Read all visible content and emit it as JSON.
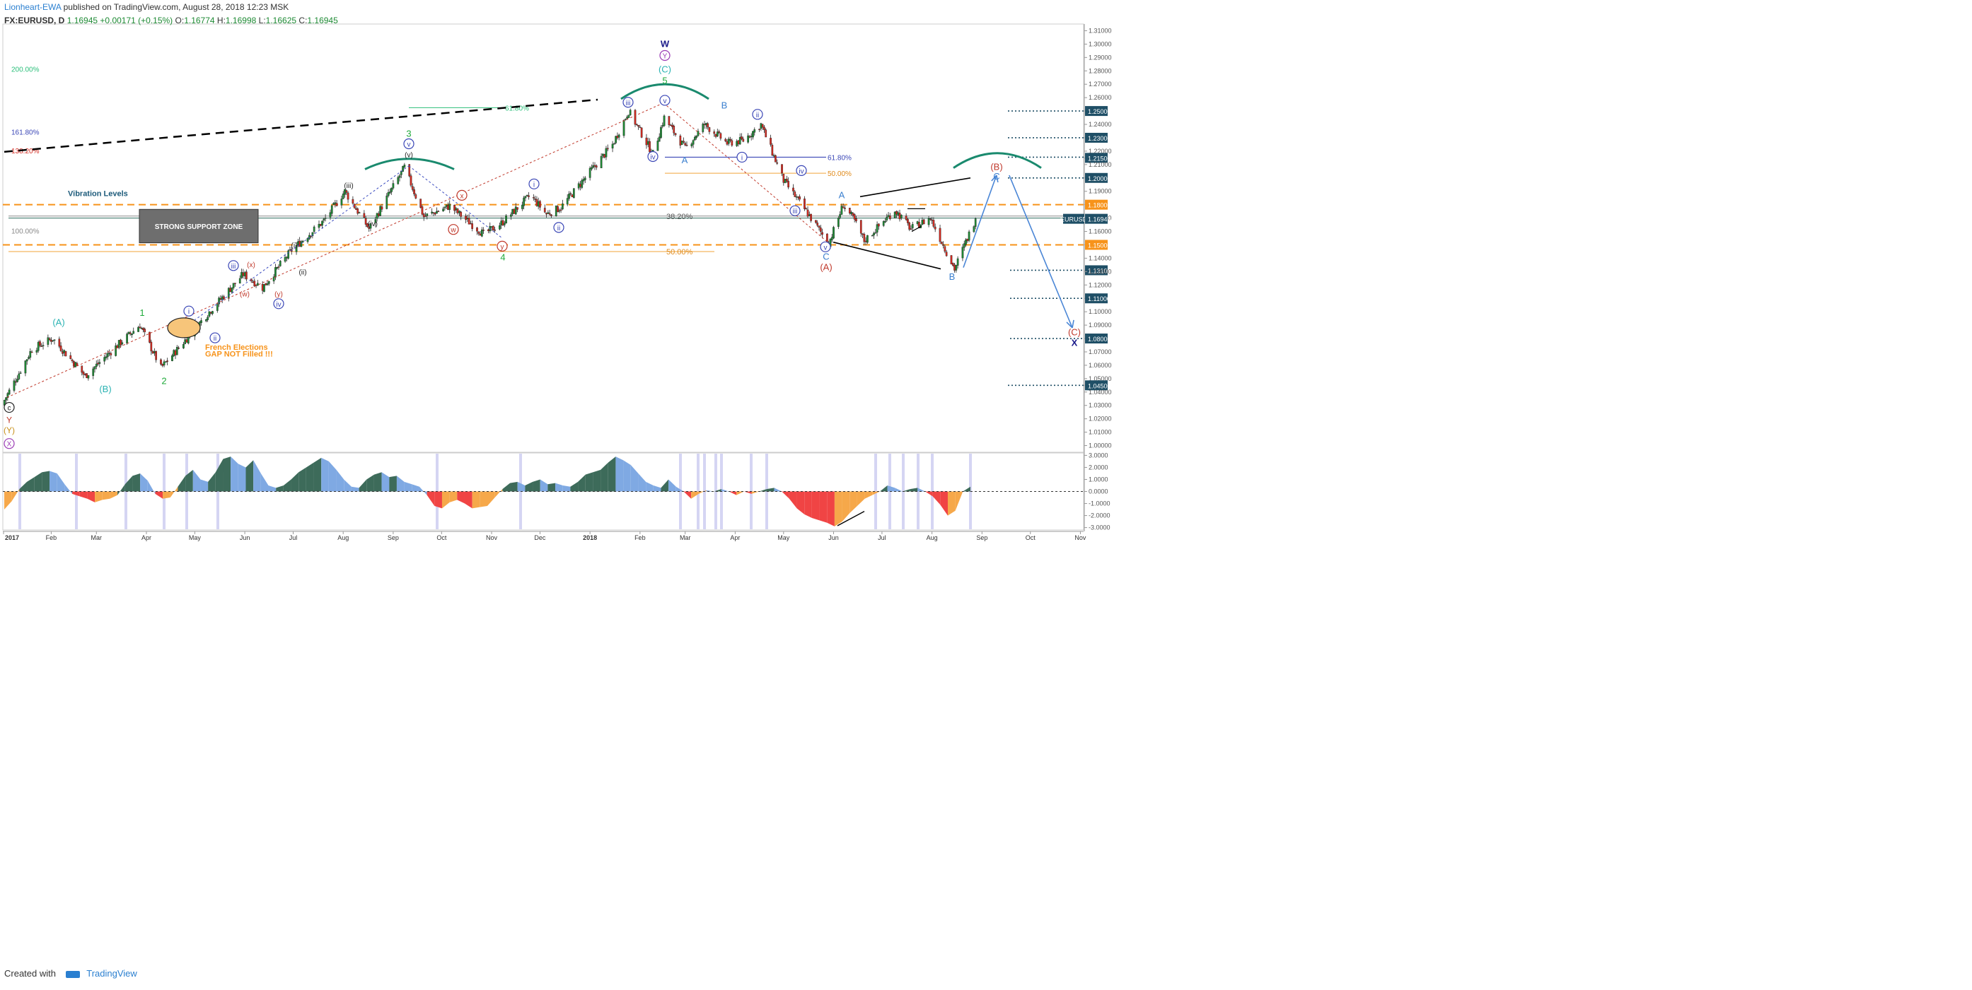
{
  "header": {
    "author": "Lionheart-EWA",
    "published_text": "published on TradingView.com, August 28, 2018 12:23 MSK",
    "symbol": "FX:EURUSD, D",
    "last": "1.16945",
    "change": "+0.00171 (+0.15%)",
    "open_label": "O:",
    "open": "1.16774",
    "high_label": "H:",
    "high": "1.16998",
    "low_label": "L:",
    "low": "1.16625",
    "close_label": "C:",
    "close": "1.16945"
  },
  "footer": {
    "created_with": "Created with",
    "brand": "TradingView"
  },
  "colors": {
    "up": "#1e8a34",
    "down": "#d42a20",
    "orange_level": "#f7931a",
    "teal_arc": "#1a8a6e",
    "osc_up_dark": "#3d6b5a",
    "osc_up_light": "#7fa9e3",
    "osc_down_red": "#f04444",
    "osc_down_orange": "#f6a84a"
  },
  "chart_data": {
    "type": "line",
    "title": "",
    "series": [
      {
        "name": "FX:EURUSD, D",
        "x": [
          "2017-01-03",
          "2017-01-20",
          "2017-02-02",
          "2017-02-22",
          "2017-03-15",
          "2017-03-28",
          "2017-04-10",
          "2017-04-21",
          "2017-05-10",
          "2017-05-31",
          "2017-06-12",
          "2017-06-30",
          "2017-07-20",
          "2017-08-02",
          "2017-08-17",
          "2017-09-08",
          "2017-09-20",
          "2017-10-06",
          "2017-10-27",
          "2017-11-07",
          "2017-11-25",
          "2017-12-05",
          "2017-12-14",
          "2018-01-02",
          "2018-01-15",
          "2018-01-25",
          "2018-02-09",
          "2018-02-16",
          "2018-03-01",
          "2018-03-13",
          "2018-03-27",
          "2018-04-06",
          "2018-04-17",
          "2018-05-01",
          "2018-05-15",
          "2018-05-29",
          "2018-06-07",
          "2018-06-14",
          "2018-06-20",
          "2018-07-09",
          "2018-07-19",
          "2018-07-31",
          "2018-08-15",
          "2018-08-28"
        ],
        "y": [
          1.034,
          1.072,
          1.08,
          1.052,
          1.076,
          1.09,
          1.058,
          1.073,
          1.1,
          1.128,
          1.118,
          1.146,
          1.168,
          1.19,
          1.162,
          1.208,
          1.171,
          1.179,
          1.158,
          1.166,
          1.187,
          1.173,
          1.178,
          1.206,
          1.225,
          1.25,
          1.218,
          1.245,
          1.222,
          1.24,
          1.226,
          1.228,
          1.24,
          1.198,
          1.175,
          1.151,
          1.18,
          1.168,
          1.153,
          1.176,
          1.162,
          1.17,
          1.132,
          1.1695
        ]
      }
    ],
    "x_ticks": [
      "2017",
      "Feb",
      "Mar",
      "Apr",
      "May",
      "Jun",
      "Jul",
      "Aug",
      "Sep",
      "Oct",
      "Nov",
      "Dec",
      "2018",
      "Feb",
      "Mar",
      "Apr",
      "May",
      "Jun",
      "Jul",
      "Aug",
      "Sep",
      "Oct",
      "Nov"
    ],
    "y_ticks": [
      "1.31000",
      "1.30000",
      "1.29000",
      "1.28000",
      "1.27000",
      "1.26000",
      "1.25000",
      "1.24000",
      "1.23000",
      "1.22000",
      "1.21500",
      "1.21000",
      "1.20000",
      "1.19000",
      "1.18000",
      "1.17000",
      "1.16945",
      "1.16000",
      "1.15000",
      "1.14000",
      "1.13100",
      "1.13000",
      "1.12000",
      "1.11000",
      "1.10000",
      "1.09000",
      "1.08000",
      "1.07000",
      "1.06000",
      "1.05000",
      "1.04500",
      "1.04000",
      "1.03000",
      "1.02000",
      "1.01000",
      "1.00000"
    ],
    "highlighted_levels": [
      "1.25000",
      "1.23000",
      "1.21500",
      "1.20000",
      "1.18000",
      "1.15000",
      "1.13100",
      "1.11000",
      "1.08000",
      "1.04500"
    ],
    "last_price_tag": {
      "label": "EURUSD",
      "value": "1.16945"
    },
    "ylim": [
      0.995,
      1.315
    ],
    "projection_path": [
      [
        "2018-08-28",
        1.1695
      ],
      [
        "2018-09-10",
        1.202
      ],
      [
        "2018-10-27",
        1.088
      ]
    ],
    "annotations": {
      "vibration_levels": "Vibration Levels",
      "support_zone": "STRONG SUPPORT ZONE",
      "french_elections_1": "French Elections",
      "french_elections_2": "GAP NOT Filled !!!",
      "fib_left": [
        "200.00%",
        "161.80%",
        "138.20%",
        "100.00%"
      ],
      "fib_mid": [
        "61.80%",
        "38.20%",
        "50.00%"
      ],
      "fib_right": [
        "61.80%",
        "50.00%"
      ],
      "waves": {
        "W": "W",
        "Y_circ": "Y",
        "C_paren_teal": "(C)",
        "five": "5",
        "three": "3",
        "four": "4",
        "one": "1",
        "two": "2",
        "A_paren_teal": "(A)",
        "B_paren_teal": "(B)",
        "c_circ": "c",
        "Y_red": "Y",
        "Y_paren": "(Y)",
        "X_circ": "X",
        "v_small": "(v)",
        "iii_small": "(iii)",
        "iv_small": "(iv)",
        "i_small": "(i)",
        "ii_small": "(ii)",
        "w_red": "(w)",
        "x_red": "(x)",
        "y_red": "(y)",
        "A_blue": "A",
        "B_blue": "B",
        "A_red_paren": "(A)",
        "B_red_paren": "(B)",
        "C_red_paren": "(C)",
        "C_blue": "C",
        "X_navy": "X",
        "A2_blue": "A",
        "B2_blue": "B",
        "C2_blue": "C"
      }
    }
  },
  "oscillator": {
    "y_ticks": [
      "3.0000",
      "2.0000",
      "1.0000",
      "0.0000",
      "-1.0000",
      "-2.0000",
      "-3.0000"
    ],
    "ylim": [
      -3.2,
      3.2
    ],
    "values": [
      -1.5,
      -0.8,
      0.2,
      0.8,
      1.2,
      1.6,
      1.7,
      1.5,
      0.6,
      -0.2,
      -0.4,
      -0.6,
      -0.9,
      -0.7,
      -0.6,
      -0.3,
      0.6,
      1.3,
      1.5,
      0.9,
      -0.2,
      -0.6,
      -0.5,
      0.4,
      1.3,
      1.8,
      1.0,
      0.8,
      1.6,
      2.7,
      2.9,
      2.3,
      2.0,
      2.6,
      1.5,
      0.5,
      0.3,
      0.5,
      1.0,
      1.6,
      2.0,
      2.4,
      2.8,
      2.5,
      1.8,
      1.0,
      0.4,
      0.3,
      1.0,
      1.4,
      1.6,
      1.2,
      1.3,
      0.8,
      0.6,
      0.4,
      -0.3,
      -1.2,
      -1.4,
      -0.9,
      -0.7,
      -1.0,
      -1.4,
      -1.3,
      -1.2,
      -0.5,
      0.2,
      0.7,
      0.8,
      0.5,
      0.8,
      1.0,
      0.6,
      0.7,
      0.5,
      0.4,
      0.8,
      1.4,
      1.6,
      1.8,
      2.4,
      2.9,
      2.6,
      2.2,
      1.5,
      0.8,
      0.5,
      0.3,
      1.0,
      0.4,
      0.0,
      -0.6,
      -0.2,
      0.1,
      0.0,
      0.2,
      0.0,
      -0.3,
      0.0,
      -0.2,
      0.0,
      0.2,
      0.3,
      0.0,
      -0.6,
      -1.4,
      -1.9,
      -2.2,
      -2.4,
      -2.6,
      -2.9,
      -2.5,
      -1.8,
      -1.2,
      -0.6,
      -0.3,
      0.0,
      0.5,
      0.3,
      0.0,
      0.2,
      0.3,
      0.0,
      -0.4,
      -1.1,
      -2.0,
      -1.6,
      0.0,
      0.4
    ]
  }
}
